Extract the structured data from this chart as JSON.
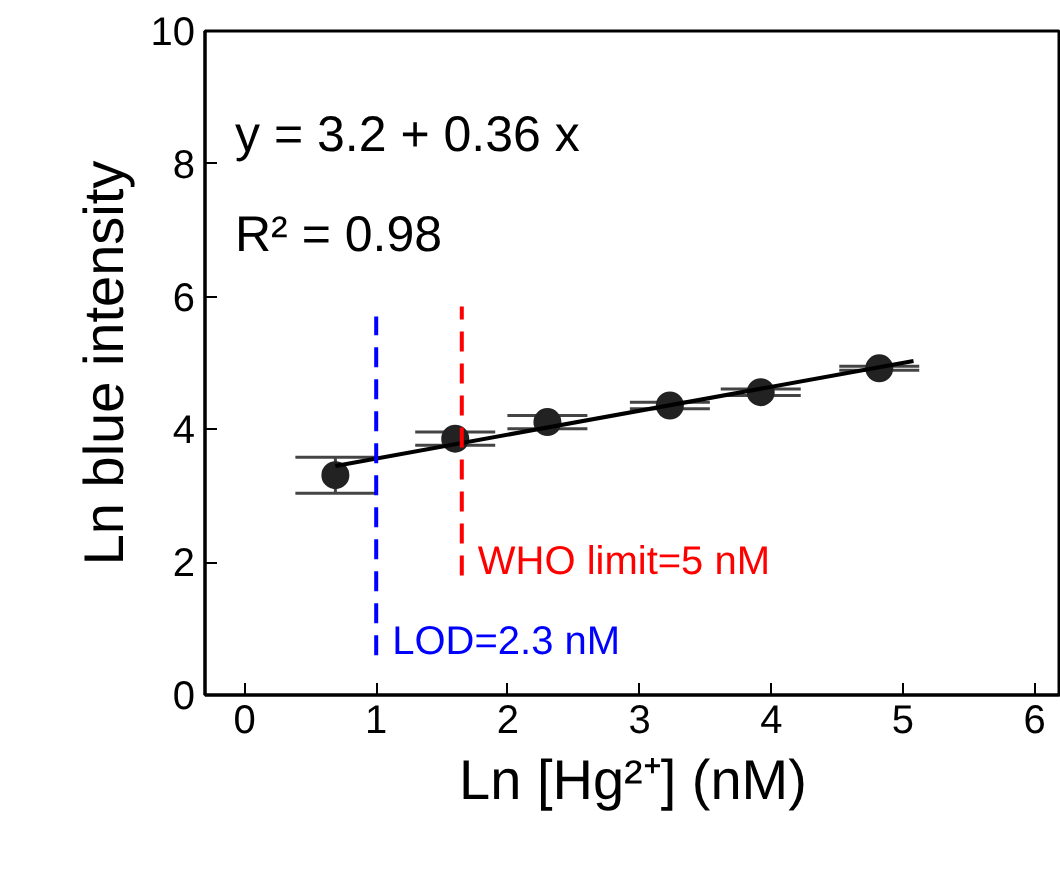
{
  "chart_data": {
    "type": "scatter",
    "xlabel": "Ln [Hg²⁺] (nM)",
    "ylabel": "Ln blue intensity",
    "xlim": [
      -0.3,
      6.2
    ],
    "ylim": [
      0,
      10
    ],
    "xticks": [
      0,
      1,
      2,
      3,
      4,
      5,
      6
    ],
    "yticks": [
      0,
      2,
      4,
      6,
      8,
      10
    ],
    "grid": false,
    "marker": "circle",
    "series": [
      {
        "color": "#222222",
        "x": [
          0.69,
          1.6,
          2.3,
          3.23,
          3.92,
          4.82
        ],
        "values": [
          3.31,
          3.86,
          4.11,
          4.36,
          4.56,
          4.92
        ],
        "errors": [
          0.27,
          0.1,
          0.1,
          0.05,
          0.05,
          0.03
        ]
      },
      {
        "type": "line",
        "color": "#000000",
        "x": [
          0.69,
          5.08
        ],
        "values": [
          3.45,
          5.03
        ],
        "line_style": "solid",
        "marker": "none"
      },
      {
        "type": "line",
        "color": "#0000ff",
        "x": [
          1.0,
          1.0
        ],
        "values": [
          0.6,
          5.7
        ],
        "line_style": "dashed",
        "marker": "none"
      },
      {
        "type": "line",
        "color": "#ff0000",
        "x": [
          1.65,
          1.65
        ],
        "values": [
          1.8,
          5.85
        ],
        "line_style": "dashed",
        "marker": "none"
      }
    ],
    "annotations": [
      "y = 3.2 + 0.36 x",
      "R² = 0.98",
      {
        "text": "WHO limit=5 nM",
        "x": 1.65,
        "y": 2.0
      },
      {
        "text": "LOD=2.3 nM",
        "x": 1.0,
        "y": 0.8
      }
    ]
  }
}
